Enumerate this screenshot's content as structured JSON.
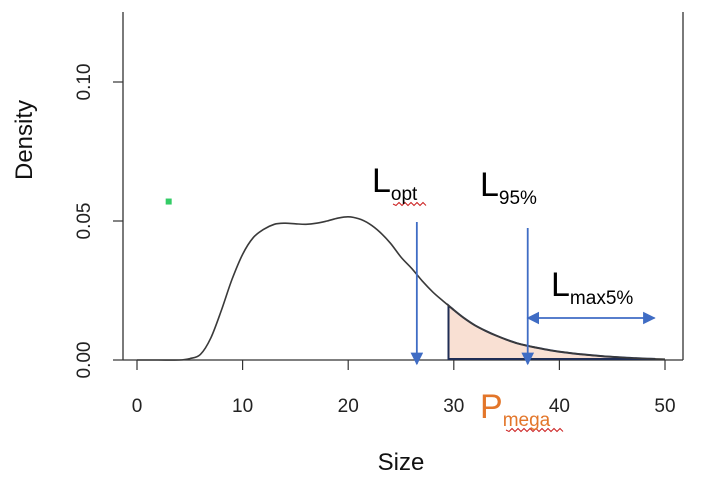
{
  "chart_data": {
    "type": "line",
    "xlabel": "Size",
    "ylabel": "Density",
    "xlim": [
      -1,
      51
    ],
    "ylim": [
      0,
      0.12
    ],
    "x_ticks": [
      "0",
      "10",
      "20",
      "30",
      "40",
      "50"
    ],
    "y_ticks": [
      "0.00",
      "0.05",
      "0.10"
    ],
    "series": [
      {
        "x": [
          0,
          2,
          4,
          5,
          6,
          7,
          8,
          9,
          10,
          11,
          12,
          13,
          14,
          15,
          16,
          17,
          18,
          19,
          20,
          21,
          22,
          23,
          24,
          25,
          26,
          27,
          28,
          29,
          30,
          31,
          32,
          33,
          34,
          35,
          36,
          37,
          38,
          39,
          40,
          42,
          44,
          46,
          48,
          50
        ],
        "y": [
          0.0,
          0.0,
          0.0,
          0.0005,
          0.002,
          0.008,
          0.018,
          0.029,
          0.038,
          0.044,
          0.047,
          0.0488,
          0.0492,
          0.049,
          0.0488,
          0.0492,
          0.05,
          0.051,
          0.0515,
          0.0508,
          0.049,
          0.046,
          0.042,
          0.037,
          0.033,
          0.0285,
          0.0245,
          0.0212,
          0.018,
          0.015,
          0.0125,
          0.0105,
          0.0088,
          0.0073,
          0.006,
          0.0051,
          0.0043,
          0.0036,
          0.003,
          0.0021,
          0.0014,
          0.0009,
          0.0005,
          0.0003
        ]
      }
    ],
    "shaded_region": {
      "x_from": 29.5,
      "x_to": 49,
      "color": "#f9e0d3"
    },
    "annotations": {
      "lopt": {
        "main": "L",
        "sub": "opt",
        "x": 26.5
      },
      "l95": {
        "main": "L",
        "sub": "95%",
        "x": 37
      },
      "lmax5": {
        "main": "L",
        "sub": "max5%",
        "x_from": 37,
        "x_to": 49
      },
      "pmega": {
        "main": "P",
        "sub": "mega"
      }
    },
    "colors": {
      "curve": "#3a3a3a",
      "shade_outline": "#1f2d55",
      "arrow": "#3f6cc4",
      "pmega": "#e3762a",
      "marker": "#33cc66",
      "squiggle": "#cc2222"
    },
    "marker_point": {
      "x": 3,
      "y": 0.057
    }
  }
}
